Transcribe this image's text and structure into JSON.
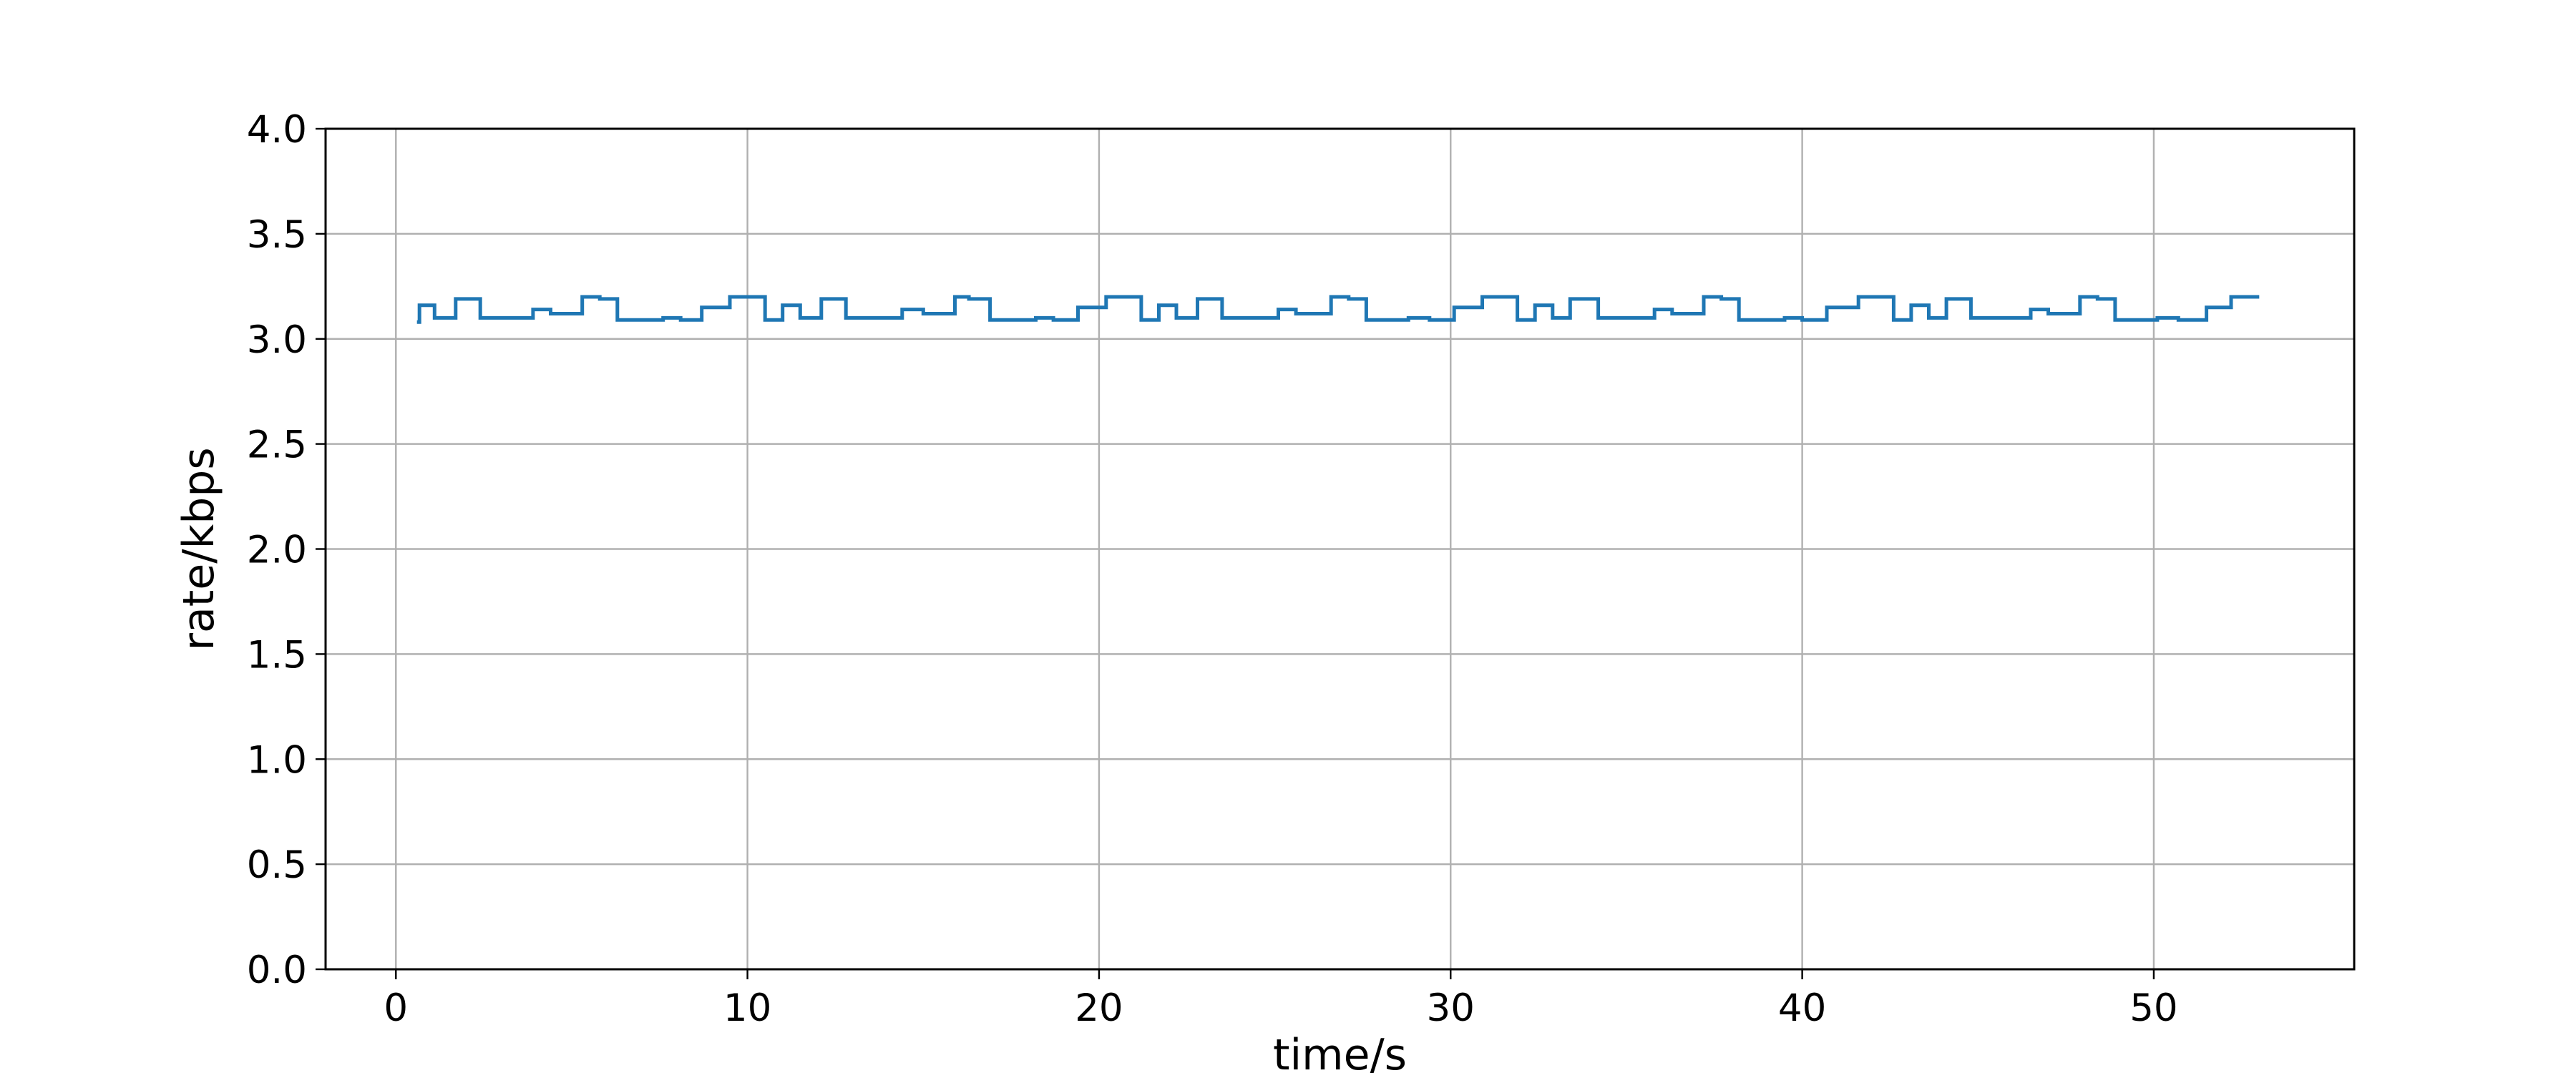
{
  "chart_data": {
    "type": "line",
    "drawstyle": "steps-post",
    "title": "",
    "xlabel": "time/s",
    "ylabel": "rate/kbps",
    "xlim": [
      -2,
      55.7
    ],
    "ylim": [
      0,
      4
    ],
    "xticks": [
      0,
      10,
      20,
      30,
      40,
      50
    ],
    "yticks": [
      0.0,
      0.5,
      1.0,
      1.5,
      2.0,
      2.5,
      3.0,
      3.5,
      4.0
    ],
    "xtick_labels": [
      "0",
      "10",
      "20",
      "30",
      "40",
      "50"
    ],
    "ytick_labels": [
      "0.0",
      "0.5",
      "1.0",
      "1.5",
      "2.0",
      "2.5",
      "3.0",
      "3.5",
      "4.0"
    ],
    "grid": true,
    "line_color": "#1f77b4",
    "series": [
      {
        "x": [
          0.6,
          0.67,
          1.1,
          1.7,
          2.4,
          3.9,
          4.4,
          5.3,
          5.8,
          6.3,
          7.6,
          8.1,
          8.7,
          9.5,
          10.5,
          11.0,
          11.5,
          12.1,
          12.8,
          14.4,
          15.0,
          15.9,
          16.3,
          16.9,
          18.2,
          18.7,
          19.4,
          20.2,
          21.2,
          21.7,
          22.2,
          22.8,
          23.5,
          25.1,
          25.6,
          26.6,
          27.1,
          27.6,
          28.8,
          29.4,
          30.1,
          30.9,
          31.9,
          32.4,
          32.9,
          33.4,
          34.2,
          35.8,
          36.3,
          37.2,
          37.7,
          38.2,
          39.5,
          40.0,
          40.7,
          41.6,
          42.6,
          43.1,
          43.6,
          44.1,
          44.8,
          46.5,
          47.0,
          47.9,
          48.4,
          48.9,
          50.1,
          50.7,
          51.5,
          52.2,
          53.0
        ],
        "y": [
          3.08,
          3.16,
          3.1,
          3.19,
          3.1,
          3.14,
          3.12,
          3.2,
          3.19,
          3.09,
          3.1,
          3.09,
          3.15,
          3.2,
          3.09,
          3.16,
          3.1,
          3.19,
          3.1,
          3.14,
          3.12,
          3.2,
          3.19,
          3.09,
          3.1,
          3.09,
          3.15,
          3.2,
          3.09,
          3.16,
          3.1,
          3.19,
          3.1,
          3.14,
          3.12,
          3.2,
          3.19,
          3.09,
          3.1,
          3.09,
          3.15,
          3.2,
          3.09,
          3.16,
          3.1,
          3.19,
          3.1,
          3.14,
          3.12,
          3.2,
          3.19,
          3.09,
          3.1,
          3.09,
          3.15,
          3.2,
          3.09,
          3.16,
          3.1,
          3.19,
          3.1,
          3.14,
          3.12,
          3.2,
          3.19,
          3.09,
          3.1,
          3.09,
          3.15,
          3.2,
          3.2
        ]
      }
    ]
  }
}
